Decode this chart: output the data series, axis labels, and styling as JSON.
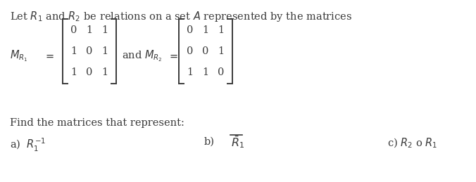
{
  "bg_color": "#ffffff",
  "text_color": "#3a3a3a",
  "matrix1": [
    [
      0,
      1,
      1
    ],
    [
      1,
      0,
      1
    ],
    [
      1,
      0,
      1
    ]
  ],
  "matrix2": [
    [
      0,
      1,
      1
    ],
    [
      0,
      0,
      1
    ],
    [
      1,
      1,
      0
    ]
  ],
  "font_size": 10.5,
  "font_size_matrix": 10.5
}
